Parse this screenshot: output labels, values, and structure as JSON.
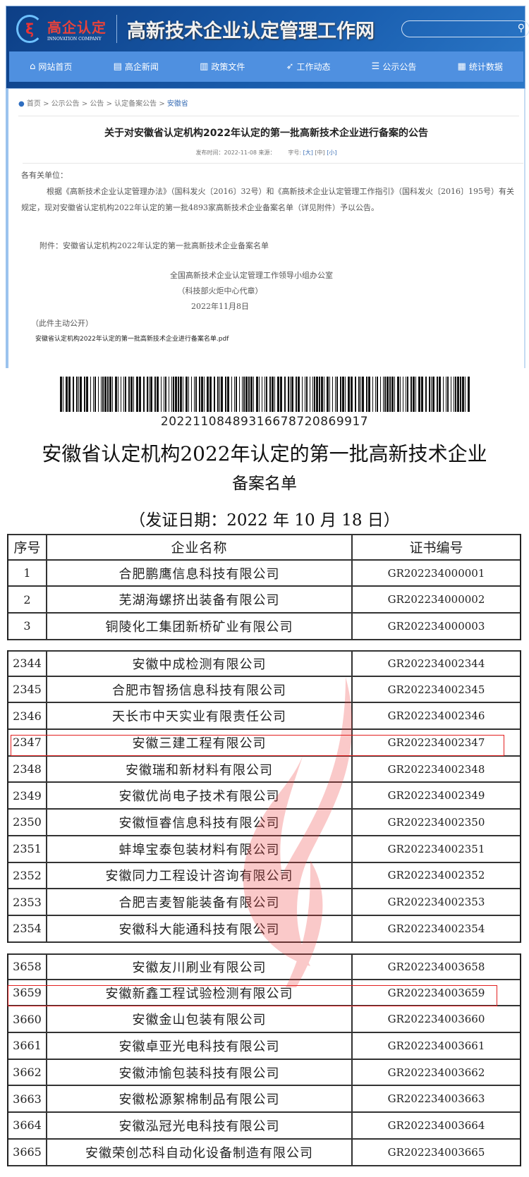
{
  "header": {
    "logo_cn": "高企认定",
    "logo_en": "INNOVATION COMPANY",
    "site_title": "高新技术企业认定管理工作网",
    "search_placeholder": "",
    "search_icon": "search-icon",
    "nav": [
      {
        "label": "网站首页",
        "icon": "home-icon"
      },
      {
        "label": "高企新闻",
        "icon": "document-icon"
      },
      {
        "label": "政策文件",
        "icon": "file-icon"
      },
      {
        "label": "工作动态",
        "icon": "paper-plane-icon"
      },
      {
        "label": "公示公告",
        "icon": "clipboard-icon"
      },
      {
        "label": "统计数据",
        "icon": "chart-icon"
      }
    ]
  },
  "breadcrumb": [
    "首页",
    "公示公告",
    "公告",
    "认定备案公告",
    "安徽省"
  ],
  "article": {
    "title": "关于对安徽省认定机构2022年认定的第一批高新技术企业进行备案的公告",
    "publish_label": "发布时间：2022-11-08 来源：",
    "font_size_label": "字号:",
    "font_sizes": [
      "[大]",
      "[中]",
      "[小]"
    ],
    "salutation": "各有关单位：",
    "paragraph": "根据《高新技术企业认定管理办法》（国科发火〔2016〕32号）和《高新技术企业认定管理工作指引》（国科发火〔2016〕195号）有关规定，现对安徽省认定机构2022年认定的第一批4893家高新技术企业备案名单（详见附件）予以公告。",
    "attachment": "附件：安徽省认定机构2022年认定的第一批高新技术企业备案名单",
    "signature_org": "全国高新技术企业认定管理工作领导小组办公室",
    "signature_seal": "（科技部火炬中心代章）",
    "signature_date": "2022年11月8日",
    "disclosure": "（此件主动公开）",
    "pdf_link": "安徽省认定机构2022年认定的第一批高新技术企业进行备案名单.pdf"
  },
  "document": {
    "barcode_number": "20221108489316678720869917",
    "title_line1": "安徽省认定机构2022年认定的第一批高新技术企业",
    "title_line2": "备案名单",
    "issue_date": "（发证日期：2022 年 10 月 18 日）",
    "columns": [
      "序号",
      "企业名称",
      "证书编号"
    ],
    "groups": [
      [
        [
          "1",
          "合肥鹏鹰信息科技有限公司",
          "GR202234000001"
        ],
        [
          "2",
          "芜湖海螺挤出装备有限公司",
          "GR202234000002"
        ],
        [
          "3",
          "铜陵化工集团新桥矿业有限公司",
          "GR202234000003"
        ]
      ],
      [
        [
          "2344",
          "安徽中成检测有限公司",
          "GR202234002344"
        ],
        [
          "2345",
          "合肥市智扬信息科技有限公司",
          "GR202234002345"
        ],
        [
          "2346",
          "天长市中天实业有限责任公司",
          "GR202234002346"
        ],
        [
          "2347",
          "安徽三建工程有限公司",
          "GR202234002347"
        ],
        [
          "2348",
          "安徽瑞和新材料有限公司",
          "GR202234002348"
        ],
        [
          "2349",
          "安徽优尚电子技术有限公司",
          "GR202234002349"
        ],
        [
          "2350",
          "安徽恒睿信息科技有限公司",
          "GR202234002350"
        ],
        [
          "2351",
          "蚌埠宝泰包装材料有限公司",
          "GR202234002351"
        ],
        [
          "2352",
          "安徽同力工程设计咨询有限公司",
          "GR202234002352"
        ],
        [
          "2353",
          "合肥吉麦智能装备有限公司",
          "GR202234002353"
        ],
        [
          "2354",
          "安徽科大能通科技有限公司",
          "GR202234002354"
        ]
      ],
      [
        [
          "3658",
          "安徽友川刷业有限公司",
          "GR202234003658"
        ],
        [
          "3659",
          "安徽新鑫工程试验检测有限公司",
          "GR202234003659"
        ],
        [
          "3660",
          "安徽金山包装有限公司",
          "GR202234003660"
        ],
        [
          "3661",
          "安徽卓亚光电科技有限公司",
          "GR202234003661"
        ],
        [
          "3662",
          "安徽沛愉包装科技有限公司",
          "GR202234003662"
        ],
        [
          "3663",
          "安徽松源絮棉制品有限公司",
          "GR202234003663"
        ],
        [
          "3664",
          "安徽泓冠光电科技有限公司",
          "GR202234003664"
        ],
        [
          "3665",
          "安徽荣创芯科自动化设备制造有限公司",
          "GR202234003665"
        ]
      ]
    ],
    "highlighted_rows": [
      "2347",
      "3659"
    ],
    "highlight_color": "#e32020",
    "watermark_color": "#f04040"
  }
}
